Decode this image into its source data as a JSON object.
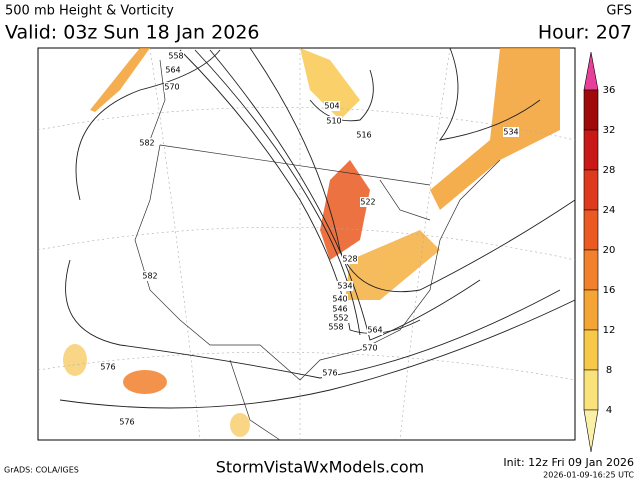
{
  "header": {
    "title": "500 mb Height & Vorticity",
    "valid": "Valid: 03z Sun 18 Jan 2026",
    "model": "GFS",
    "hour": "Hour: 207"
  },
  "colorbar": {
    "levels": [
      36,
      32,
      28,
      24,
      20,
      16,
      12,
      8,
      4
    ],
    "colors": [
      "#e8409a",
      "#a00a0a",
      "#c81818",
      "#e03a1e",
      "#ea5a22",
      "#f2802c",
      "#f5a535",
      "#f8c84a",
      "#f9e27a",
      "#faf0a8"
    ]
  },
  "contour_labels": [
    "558",
    "564",
    "570",
    "582",
    "504",
    "510",
    "516",
    "534",
    "522",
    "528",
    "534",
    "540",
    "546",
    "552",
    "558",
    "564",
    "570",
    "582",
    "576",
    "576",
    "576"
  ],
  "footer": {
    "credit": "GrADS: COLA/IGES",
    "site": "StormVistaWxModels.com",
    "init": "Init: 12z Fri 09 Jan 2026",
    "stamp": "2026-01-09-16:25 UTC"
  }
}
